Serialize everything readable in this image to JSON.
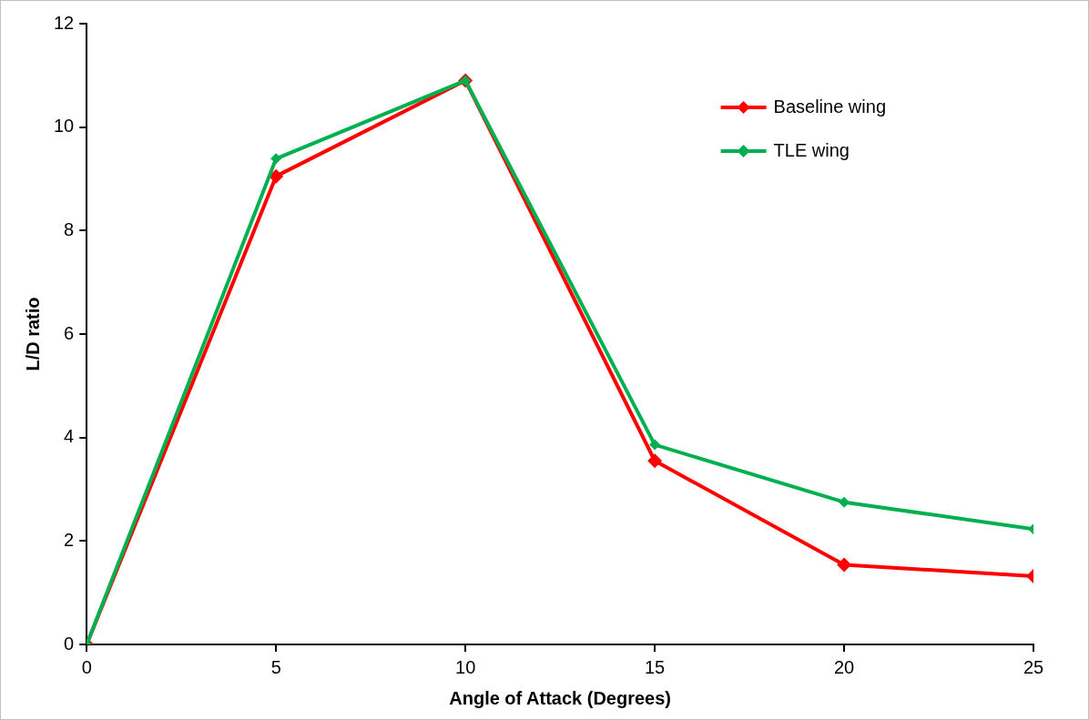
{
  "chart_data": {
    "type": "line",
    "xlabel": "Angle of Attack (Degrees)",
    "ylabel": "L/D ratio",
    "x": [
      0,
      5,
      10,
      15,
      20,
      25
    ],
    "series": [
      {
        "name": "Baseline wing",
        "color": "#ff0000",
        "values": [
          0,
          9.05,
          10.9,
          3.55,
          1.54,
          1.32
        ]
      },
      {
        "name": "TLE wing",
        "color": "#00b050",
        "values": [
          0,
          9.39,
          10.9,
          3.86,
          2.75,
          2.23
        ]
      }
    ],
    "xlim": [
      0,
      25
    ],
    "xticks": [
      0,
      5,
      10,
      15,
      20,
      25
    ],
    "ylim": [
      0,
      12
    ],
    "yticks": [
      0,
      2,
      4,
      6,
      8,
      10,
      12
    ],
    "legend": "top right",
    "marker": "diamond",
    "line_style": "solid"
  }
}
